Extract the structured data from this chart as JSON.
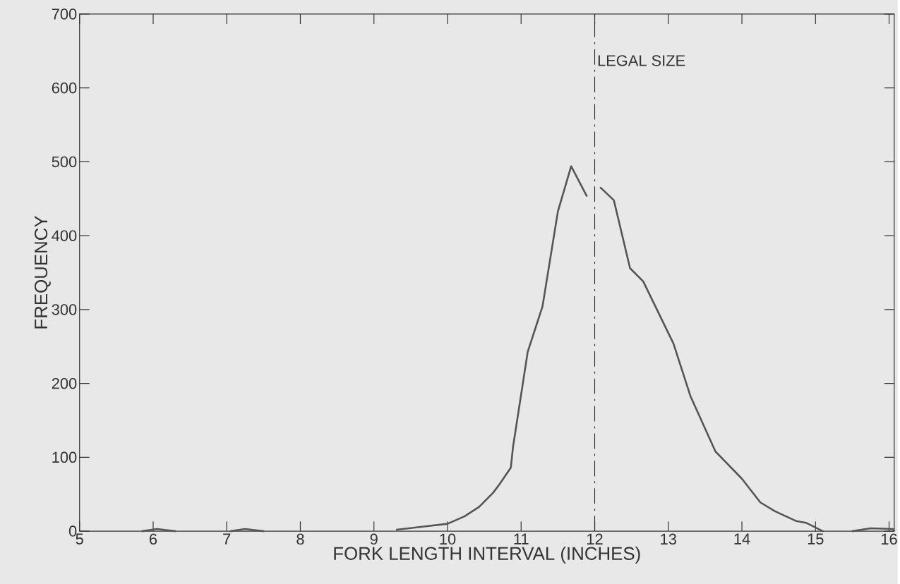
{
  "chart_data": {
    "type": "line",
    "xlabel": "FORK LENGTH INTERVAL (INCHES)",
    "ylabel": "FREQUENCY",
    "xlim": [
      5,
      16.07
    ],
    "ylim": [
      0,
      700
    ],
    "xticks": [
      5,
      6,
      7,
      8,
      9,
      10,
      11,
      12,
      13,
      14,
      15,
      16
    ],
    "yticks": [
      0,
      100,
      200,
      300,
      400,
      500,
      600,
      700
    ],
    "marker": "none",
    "line_style": "solid",
    "ref_lines": [
      {
        "axis": "x",
        "value": 12,
        "label": "LEGAL SIZE"
      }
    ],
    "series": [
      {
        "color": "#555555",
        "x": [
          5.85,
          6.05,
          6.3,
          null,
          7.05,
          7.25,
          7.5,
          null,
          9.31,
          9.66,
          10.0,
          10.23,
          10.43,
          10.62,
          10.71,
          10.86,
          10.89,
          11.09,
          11.29,
          11.5,
          11.68,
          11.89,
          null,
          12.08,
          12.26,
          12.48,
          12.66,
          13.07,
          13.3,
          13.64,
          14.0,
          14.25,
          14.45,
          14.73,
          14.88,
          15.0,
          15.1,
          null,
          15.5,
          15.75,
          16.05,
          16.07
        ],
        "values": [
          0,
          3,
          0,
          null,
          0,
          3,
          0,
          null,
          2,
          6,
          10,
          20,
          33,
          52,
          64,
          86,
          114,
          243,
          304,
          433,
          494,
          454,
          null,
          465,
          448,
          356,
          338,
          254,
          183,
          108,
          71,
          39,
          27,
          14,
          11,
          5,
          0,
          null,
          0,
          4,
          3,
          1
        ]
      }
    ]
  }
}
